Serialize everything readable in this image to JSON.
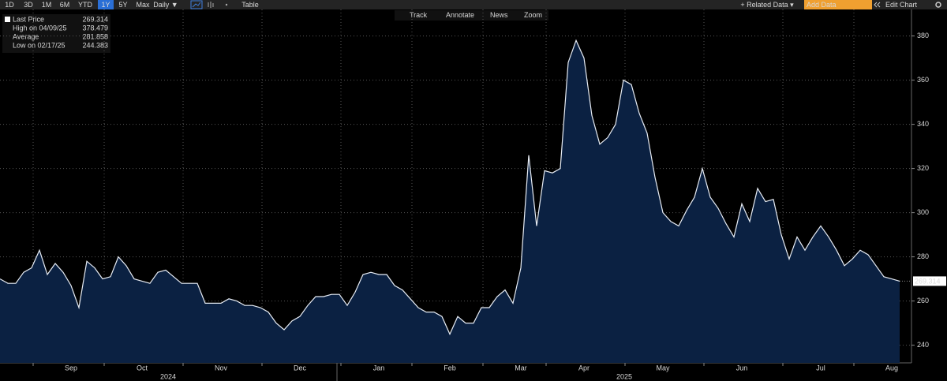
{
  "toolbar": {
    "left": [
      "1D",
      "3D",
      "1M",
      "6M",
      "YTD",
      "1Y",
      "5Y",
      "Max",
      "Daily ▼",
      "Table"
    ],
    "selected_index": 5,
    "right": [
      "+ Related Data ▾",
      "Add Data",
      "Edit Chart"
    ]
  },
  "chart_tools": [
    "Track",
    "Annotate",
    "News",
    "Zoom"
  ],
  "legend": [
    {
      "label": "Last Price",
      "value": "269.314"
    },
    {
      "label": "High on 04/09/25",
      "value": "378.479"
    },
    {
      "label": "Average",
      "value": "281.858"
    },
    {
      "label": "Low on 02/17/25",
      "value": "244.383"
    }
  ],
  "chart_data": {
    "type": "area",
    "color": "#e8edf5",
    "fill_color": "#0b2142",
    "categories": [
      null,
      null,
      null,
      null,
      null,
      null,
      null,
      null,
      null,
      "Sep",
      null,
      null,
      null,
      null,
      null,
      null,
      null,
      null,
      "Oct",
      null,
      null,
      null,
      null,
      null,
      null,
      null,
      null,
      null,
      "Nov",
      null,
      null,
      null,
      null,
      null,
      null,
      null,
      null,
      null,
      "Dec",
      null,
      null,
      null,
      null,
      null,
      null,
      null,
      null,
      null,
      "Jan",
      null,
      null,
      null,
      null,
      null,
      null,
      null,
      null,
      "Feb",
      null,
      null,
      null,
      null,
      null,
      null,
      null,
      null,
      "Mar",
      null,
      null,
      null,
      null,
      null,
      null,
      null,
      "Apr",
      null,
      null,
      null,
      null,
      null,
      null,
      null,
      null,
      null,
      "May",
      null,
      null,
      null,
      null,
      null,
      null,
      null,
      null,
      null,
      "Jun",
      null,
      null,
      null,
      null,
      null,
      null,
      null,
      null,
      null,
      "Jul",
      null,
      null,
      null,
      null,
      null,
      null,
      null,
      null,
      "Aug",
      null
    ],
    "values": [
      270,
      268,
      268,
      273,
      275,
      283,
      272,
      277,
      273,
      267,
      257,
      278,
      275,
      270,
      271,
      280,
      276,
      270,
      269,
      268,
      273,
      274,
      271,
      268,
      268,
      268,
      259,
      259,
      259,
      261,
      260,
      258,
      258,
      257,
      255,
      250,
      247,
      251,
      253,
      258,
      262,
      262,
      263,
      263,
      258,
      264,
      272,
      273,
      272,
      272,
      267,
      265,
      261,
      257,
      255,
      255,
      253,
      245,
      253,
      250,
      250,
      257,
      257,
      262,
      265,
      259,
      275,
      326,
      294,
      319,
      318,
      320,
      368,
      378,
      370,
      344,
      331,
      334,
      340,
      360,
      358,
      345,
      336,
      316,
      300,
      296,
      294,
      301,
      307,
      320,
      307,
      302,
      295,
      289,
      304,
      296,
      311,
      305,
      306,
      290,
      279,
      289,
      283,
      289,
      294,
      289,
      283,
      276,
      279,
      283,
      281,
      276,
      271,
      270,
      269
    ],
    "year_labels": [
      "2024",
      "2025"
    ],
    "ylim": [
      232,
      392
    ],
    "yticks": [
      240,
      260,
      280,
      300,
      320,
      340,
      360,
      380
    ],
    "grid": true
  }
}
